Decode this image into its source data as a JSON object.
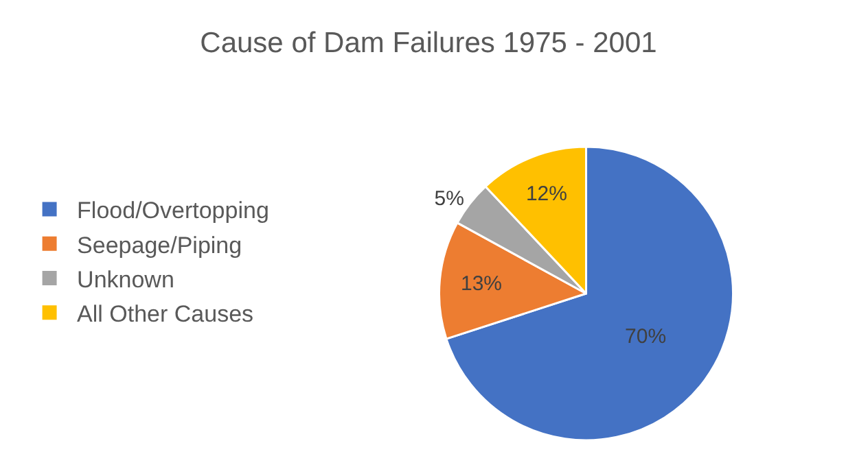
{
  "chart_data": {
    "type": "pie",
    "title": "Cause of Dam Failures 1975 - 2001",
    "categories": [
      "Flood/Overtopping",
      "Seepage/Piping",
      "Unknown",
      "All Other Causes"
    ],
    "values": [
      70,
      13,
      5,
      12
    ],
    "colors": [
      "#4472c4",
      "#ed7d31",
      "#a5a5a5",
      "#ffc000"
    ],
    "value_labels": [
      "70%",
      "13%",
      "5%",
      "12%"
    ],
    "legend": "left"
  }
}
